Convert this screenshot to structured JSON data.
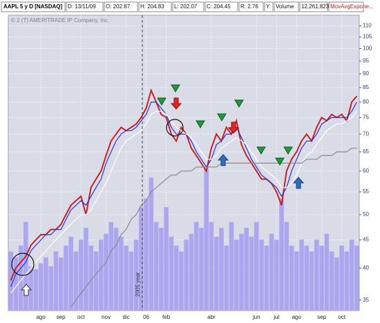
{
  "chart_data": {
    "type": "line",
    "title": "AAPL 5 y D [NASDAQ]",
    "info_fields": [
      "D: 13/11/09",
      "O: 202.87",
      "H: 204.83",
      "L: 202.07",
      "C: 204.45",
      "R: 2.76",
      "Y:",
      "Volume",
      "12,261,823",
      "MovAvgExpone..."
    ],
    "watermark": "© 2 (T) AMERITRADE IP Company, Inc.",
    "annotation": "2005 year",
    "categories": [
      null,
      null,
      null,
      null,
      null,
      null,
      "ago",
      null,
      null,
      null,
      "sep",
      null,
      null,
      null,
      "oct",
      null,
      null,
      null,
      null,
      "nov",
      null,
      null,
      null,
      "dic",
      null,
      null,
      null,
      "06",
      null,
      null,
      null,
      "feb",
      null,
      null,
      null,
      null,
      null,
      null,
      null,
      null,
      "abr",
      null,
      null,
      null,
      null,
      null,
      null,
      null,
      null,
      "jun",
      null,
      null,
      null,
      "jul",
      null,
      null,
      null,
      "ago",
      null,
      null,
      null,
      null,
      "sep",
      null,
      null,
      null,
      "oct",
      null,
      null,
      null
    ],
    "log_scale": true,
    "ylim": [
      33.5,
      115
    ],
    "yticks": [
      35,
      40,
      45,
      50,
      55,
      60,
      65,
      70,
      75,
      80,
      85,
      90,
      95,
      100,
      105,
      110
    ],
    "y2lim": [
      0,
      100
    ],
    "grid": true,
    "series": [
      {
        "color": "#c8201e",
        "values": [
          38,
          40,
          41,
          42,
          44,
          45,
          46,
          46,
          47,
          47,
          48,
          50,
          52,
          53,
          54,
          50,
          56,
          58,
          60,
          64,
          68,
          70,
          72,
          71,
          72,
          73,
          75,
          78,
          84,
          80,
          76,
          75,
          70,
          68,
          72,
          70,
          66,
          64,
          62,
          60,
          66,
          70,
          68,
          72,
          70,
          74,
          67,
          64,
          62,
          60,
          58,
          58,
          57,
          55,
          52,
          60,
          63,
          65,
          68,
          70,
          68,
          72,
          75,
          74,
          76,
          75,
          76,
          74,
          80,
          82
        ]
      },
      {
        "color": "#2233dd",
        "values": [
          37,
          39,
          40,
          41,
          43,
          44,
          45,
          46,
          46,
          47,
          47,
          49,
          51,
          52,
          53,
          52,
          54,
          56,
          58,
          62,
          65,
          68,
          70,
          71,
          71,
          72,
          74,
          76,
          80,
          80,
          78,
          76,
          72,
          70,
          70,
          70,
          68,
          65,
          63,
          61,
          63,
          67,
          68,
          70,
          70,
          72,
          69,
          66,
          63,
          61,
          59,
          58,
          57,
          56,
          54,
          56,
          60,
          63,
          66,
          68,
          68,
          70,
          73,
          74,
          75,
          75,
          75,
          75,
          77,
          80
        ]
      },
      {
        "color": "#ffffff",
        "values": [
          36,
          37,
          38,
          39,
          40,
          41,
          42,
          43,
          44,
          45,
          46,
          47,
          48,
          49,
          50,
          50,
          51,
          53,
          55,
          57,
          60,
          63,
          66,
          68,
          69,
          70,
          71,
          73,
          76,
          77,
          77,
          76,
          74,
          72,
          71,
          70,
          69,
          67,
          65,
          63,
          63,
          64,
          66,
          67,
          68,
          69,
          68,
          67,
          65,
          63,
          61,
          60,
          59,
          58,
          56,
          56,
          57,
          59,
          62,
          64,
          65,
          67,
          69,
          71,
          72,
          73,
          73,
          74,
          75,
          77
        ]
      },
      {
        "color": "#8a8a8a",
        "values": [
          null,
          null,
          null,
          null,
          null,
          null,
          null,
          null,
          null,
          null,
          null,
          null,
          34,
          35,
          36,
          37,
          38,
          39,
          40,
          41,
          43,
          44,
          46,
          47,
          49,
          50,
          52,
          53,
          55,
          56,
          57,
          58,
          59,
          59,
          60,
          60,
          60,
          61,
          61,
          61,
          61,
          61,
          62,
          62,
          62,
          62,
          62,
          62,
          62,
          62,
          62,
          62,
          62,
          62,
          62,
          62,
          62,
          62,
          62,
          63,
          63,
          63,
          64,
          64,
          64,
          65,
          65,
          65,
          66,
          66
        ]
      },
      {
        "color": "#aaa6f0",
        "axis": "y2",
        "type": "bar",
        "values": [
          20,
          18,
          22,
          30,
          15,
          14,
          16,
          18,
          15,
          20,
          18,
          22,
          25,
          20,
          24,
          28,
          22,
          20,
          24,
          26,
          30,
          28,
          25,
          22,
          20,
          24,
          35,
          38,
          45,
          30,
          28,
          35,
          25,
          22,
          20,
          24,
          26,
          30,
          28,
          48,
          30,
          25,
          28,
          22,
          30,
          24,
          26,
          28,
          25,
          30,
          24,
          22,
          26,
          24,
          38,
          30,
          22,
          20,
          24,
          22,
          20,
          24,
          22,
          26,
          20,
          18,
          22,
          20,
          24,
          22
        ]
      }
    ]
  }
}
